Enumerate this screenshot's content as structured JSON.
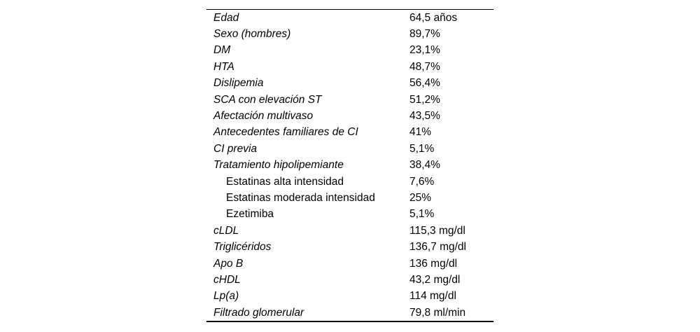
{
  "colors": {
    "background": "#ffffff",
    "text": "#000000",
    "rule": "#000000"
  },
  "table": {
    "rows": [
      {
        "label": "Edad",
        "value": "64,5 años"
      },
      {
        "label": "Sexo (hombres)",
        "value": "89,7%"
      },
      {
        "label": "DM",
        "value": "23,1%"
      },
      {
        "label": "HTA",
        "value": "48,7%"
      },
      {
        "label": "Dislipemia",
        "value": "56,4%"
      },
      {
        "label": "SCA con elevación ST",
        "value": "51,2%"
      },
      {
        "label": "Afectación multivaso",
        "value": "43,5%"
      },
      {
        "label": "Antecedentes familiares de CI",
        "value": "41%"
      },
      {
        "label": "CI previa",
        "value": "5,1%"
      },
      {
        "label": "Tratamiento hipolipemiante",
        "value": "38,4%"
      },
      {
        "label": "Estatinas alta intensidad",
        "value": "7,6%",
        "sub": true
      },
      {
        "label": "Estatinas moderada intensidad",
        "value": "25%",
        "sub": true
      },
      {
        "label": "Ezetimiba",
        "value": "5,1%",
        "sub": true
      },
      {
        "label": "cLDL",
        "value": "115,3 mg/dl"
      },
      {
        "label": "Triglicéridos",
        "value": "136,7 mg/dl"
      },
      {
        "label": "Apo B",
        "value": "136 mg/dl"
      },
      {
        "label": "cHDL",
        "value": "43,2 mg/dl"
      },
      {
        "label": "Lp(a)",
        "value": "114 mg/dl"
      },
      {
        "label": "Filtrado glomerular",
        "value": "79,8 ml/min"
      }
    ]
  }
}
